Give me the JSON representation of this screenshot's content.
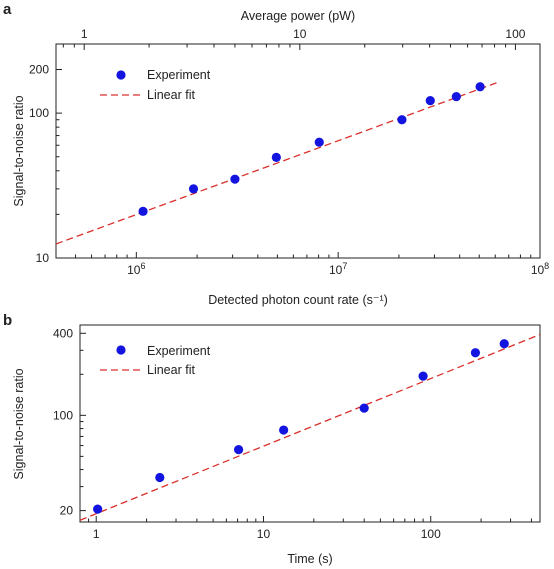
{
  "colors": {
    "experiment": "#1414e0",
    "linear_fit": "#d9302c",
    "axis": "#222222"
  },
  "chart_data": [
    {
      "panel": "a",
      "type": "scatter",
      "xscale": "log",
      "yscale": "log",
      "xlabel": "Detected photon count rate (s⁻¹)",
      "ylabel": "Signal-to-noise ratio",
      "top_xlabel": "Average power (pW)",
      "xlim": [
        400000,
        100000000
      ],
      "ylim": [
        10,
        300
      ],
      "top_xlim": [
        0.74,
        130
      ],
      "x_ticks": [
        1000000,
        10000000,
        100000000
      ],
      "x_tick_labels": [
        {
          "base": "10",
          "exp": "6"
        },
        {
          "base": "10",
          "exp": "7"
        },
        {
          "base": "10",
          "exp": "8"
        }
      ],
      "y_ticks": [
        10,
        100,
        200
      ],
      "y_tick_labels": [
        "10",
        "100",
        "200"
      ],
      "top_x_ticks": [
        1,
        10,
        100
      ],
      "top_x_tick_labels": [
        "1",
        "10",
        "100"
      ],
      "legend": {
        "position": "top-left",
        "entries": [
          "Experiment",
          "Linear fit"
        ]
      },
      "series": [
        {
          "name": "Experiment",
          "style": "markers",
          "x": [
            1080000,
            1920000,
            3080000,
            4940000,
            8060000,
            20700000,
            28600000,
            38500000,
            50500000
          ],
          "y": [
            21,
            30,
            35,
            49.5,
            63,
            90,
            122,
            130,
            152
          ]
        },
        {
          "name": "Linear fit",
          "style": "dashed",
          "x": [
            400000,
            61000000
          ],
          "y": [
            12.5,
            162
          ]
        }
      ]
    },
    {
      "panel": "b",
      "type": "scatter",
      "xscale": "log",
      "yscale": "log",
      "xlabel": "Time (s)",
      "ylabel": "Signal-to-noise ratio",
      "xlim": [
        0.8,
        450
      ],
      "ylim": [
        16.5,
        460
      ],
      "x_ticks": [
        1,
        10,
        100
      ],
      "x_tick_labels": [
        "1",
        "10",
        "100"
      ],
      "y_ticks": [
        20,
        100,
        400
      ],
      "y_tick_labels": [
        "20",
        "100",
        "400"
      ],
      "legend": {
        "position": "top-left",
        "entries": [
          "Experiment",
          "Linear fit"
        ]
      },
      "series": [
        {
          "name": "Experiment",
          "style": "markers",
          "x": [
            1.02,
            2.4,
            7.1,
            13.2,
            40,
            90,
            185,
            275
          ],
          "y": [
            20.5,
            35,
            56,
            78,
            113,
            194,
            288,
            335
          ]
        },
        {
          "name": "Linear fit",
          "style": "dashed",
          "x": [
            0.8,
            450
          ],
          "y": [
            17,
            392
          ]
        }
      ]
    }
  ]
}
